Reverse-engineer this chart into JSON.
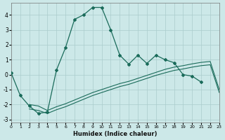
{
  "xlabel": "Humidex (Indice chaleur)",
  "bg_color": "#cce8e8",
  "grid_color": "#aacccc",
  "line_color": "#1a6b5a",
  "x_main": [
    0,
    1,
    2,
    3,
    4,
    5,
    6,
    7,
    8,
    9,
    10,
    11,
    12,
    13,
    14,
    15,
    16,
    17,
    18,
    19,
    20,
    21
  ],
  "y_main": [
    0.1,
    -1.4,
    -2.1,
    -2.6,
    -2.5,
    0.3,
    1.8,
    3.7,
    4.0,
    4.5,
    4.5,
    3.0,
    1.3,
    0.7,
    1.3,
    0.75,
    1.3,
    1.0,
    0.8,
    0.0,
    -0.1,
    -0.5
  ],
  "x_trendA": [
    2,
    3,
    4,
    5,
    6,
    7,
    8,
    9,
    10,
    11,
    12,
    13,
    14,
    15,
    16,
    17,
    18,
    19,
    20,
    21,
    22,
    23
  ],
  "y_trendA": [
    -2.0,
    -2.1,
    -2.4,
    -2.15,
    -1.95,
    -1.7,
    -1.45,
    -1.2,
    -1.0,
    -0.8,
    -0.6,
    -0.45,
    -0.25,
    -0.05,
    0.15,
    0.35,
    0.5,
    0.6,
    0.72,
    0.82,
    0.88,
    -1.0
  ],
  "x_trendB": [
    2,
    3,
    4,
    5,
    6,
    7,
    8,
    9,
    10,
    11,
    12,
    13,
    14,
    15,
    16,
    17,
    18,
    19,
    20,
    21,
    22,
    23
  ],
  "y_trendB": [
    -2.3,
    -2.4,
    -2.6,
    -2.35,
    -2.15,
    -1.9,
    -1.65,
    -1.4,
    -1.2,
    -1.0,
    -0.8,
    -0.65,
    -0.45,
    -0.25,
    -0.05,
    0.12,
    0.28,
    0.38,
    0.5,
    0.6,
    0.66,
    -1.2
  ],
  "xlim": [
    0,
    23
  ],
  "ylim": [
    -3.2,
    4.8
  ],
  "xticks": [
    0,
    1,
    2,
    3,
    4,
    5,
    6,
    7,
    8,
    9,
    10,
    11,
    12,
    13,
    14,
    15,
    16,
    17,
    18,
    19,
    20,
    21,
    22,
    23
  ],
  "yticks": [
    -3,
    -2,
    -1,
    0,
    1,
    2,
    3,
    4
  ]
}
